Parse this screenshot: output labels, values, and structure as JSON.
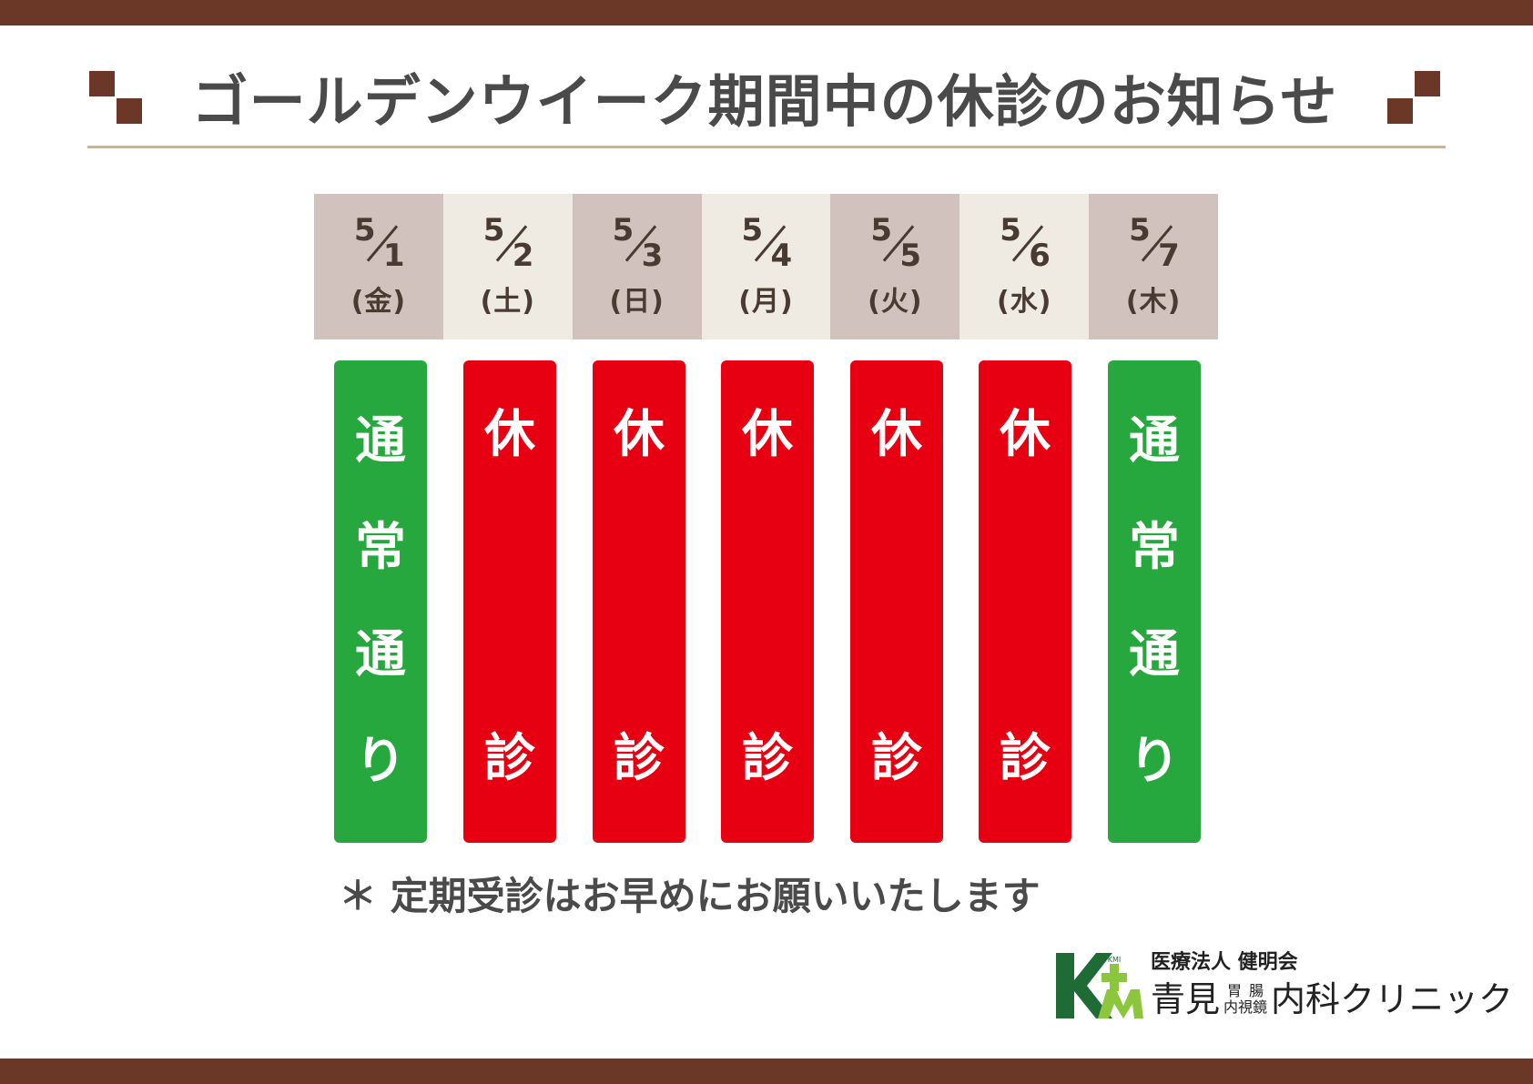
{
  "title": "ゴールデンウイーク期間中の休診のお知らせ",
  "dates": [
    {
      "month": "5",
      "day": "1",
      "weekday": "(金)"
    },
    {
      "month": "5",
      "day": "2",
      "weekday": "(土)"
    },
    {
      "month": "5",
      "day": "3",
      "weekday": "(日)"
    },
    {
      "month": "5",
      "day": "4",
      "weekday": "(月)"
    },
    {
      "month": "5",
      "day": "5",
      "weekday": "(火)"
    },
    {
      "month": "5",
      "day": "6",
      "weekday": "(水)"
    },
    {
      "month": "5",
      "day": "7",
      "weekday": "(木)"
    }
  ],
  "statuses": [
    {
      "type": "open",
      "chars": [
        "通",
        "常",
        "通",
        "り"
      ]
    },
    {
      "type": "closed",
      "chars": [
        "休",
        "診"
      ]
    },
    {
      "type": "closed",
      "chars": [
        "休",
        "診"
      ]
    },
    {
      "type": "closed",
      "chars": [
        "休",
        "診"
      ]
    },
    {
      "type": "closed",
      "chars": [
        "休",
        "診"
      ]
    },
    {
      "type": "closed",
      "chars": [
        "休",
        "診"
      ]
    },
    {
      "type": "open",
      "chars": [
        "通",
        "常",
        "通",
        "り"
      ]
    }
  ],
  "note": "＊ 定期受診はお早めにお願いいたします",
  "footer": {
    "org": "医療法人 健明会",
    "clinic_prefix": "青見",
    "clinic_stack": [
      "胃",
      "腸",
      "内視鏡"
    ],
    "clinic_suffix": "内科クリニック",
    "logo_emblem_text": "KMI"
  },
  "colors": {
    "brand_brown": "#6b3726",
    "open_green": "#27a83e",
    "closed_red": "#e60012",
    "logo_green": "#1e6b35",
    "logo_light_green": "#8cc63f"
  }
}
